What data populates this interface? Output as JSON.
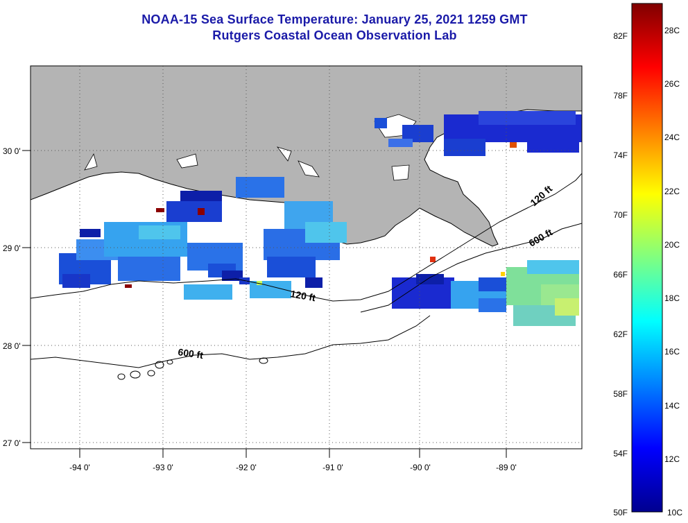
{
  "title": {
    "line1": "NOAA-15 Sea Surface Temperature:  January 25, 2021 1259 GMT",
    "line2": "Rutgers Coastal Ocean Observation Lab"
  },
  "map": {
    "lon_labels": [
      "-94 0'",
      "-93 0'",
      "-92 0'",
      "-91 0'",
      "-90 0'",
      "-89 0'"
    ],
    "lat_labels": [
      "30 0'",
      "29 0'",
      "28 0'",
      "27 0'"
    ],
    "depth_labels": [
      "120 ft",
      "600 ft",
      "120 ft",
      "600 ft"
    ],
    "land_color": "#b4b4b4",
    "water_color": "#ffffff"
  },
  "colorbar": {
    "fahrenheit_labels": [
      "82F",
      "78F",
      "74F",
      "70F",
      "66F",
      "62F",
      "58F",
      "54F",
      "50F"
    ],
    "celsius_labels": [
      "28C",
      "26C",
      "24C",
      "22C",
      "20C",
      "18C",
      "16C",
      "14C",
      "12C",
      "10C"
    ],
    "gradient_colors": [
      "#00008f",
      "#0000ff",
      "#0080ff",
      "#00ffff",
      "#80ff80",
      "#ffff00",
      "#ff8000",
      "#ff0000",
      "#800000"
    ]
  }
}
